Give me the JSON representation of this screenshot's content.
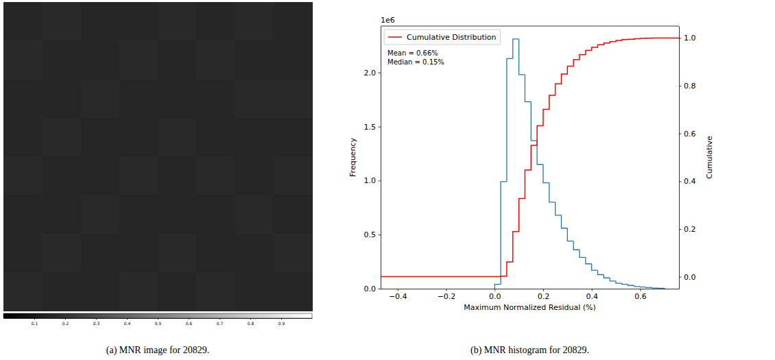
{
  "chart_data": [
    {
      "type": "heatmap",
      "caption": "(a) MNR image for 20829.",
      "cells": [
        [
          0.15,
          0.16,
          0.15,
          0.15,
          0.16,
          0.15,
          0.16,
          0.15
        ],
        [
          0.16,
          0.15,
          0.15,
          0.16,
          0.15,
          0.16,
          0.15,
          0.15
        ],
        [
          0.15,
          0.15,
          0.16,
          0.15,
          0.15,
          0.15,
          0.16,
          0.16
        ],
        [
          0.15,
          0.16,
          0.15,
          0.15,
          0.16,
          0.15,
          0.15,
          0.15
        ],
        [
          0.16,
          0.15,
          0.15,
          0.16,
          0.15,
          0.16,
          0.15,
          0.16
        ],
        [
          0.15,
          0.15,
          0.16,
          0.15,
          0.15,
          0.15,
          0.16,
          0.15
        ],
        [
          0.15,
          0.16,
          0.15,
          0.15,
          0.16,
          0.15,
          0.15,
          0.16
        ],
        [
          0.16,
          0.15,
          0.15,
          0.16,
          0.15,
          0.16,
          0.15,
          0.15
        ]
      ],
      "colorbar": {
        "range": [
          0,
          1
        ],
        "ticks": [
          0.1,
          0.2,
          0.3,
          0.4,
          0.5,
          0.6,
          0.7,
          0.8,
          0.9
        ]
      },
      "tick_labels": false
    },
    {
      "type": "histogram",
      "caption": "(b) MNR histogram for 20829.",
      "xlabel": "Maximum Normalized Residual (%)",
      "ylabel": "Frequency",
      "y2label": "Cumulative",
      "y_offset_label": "1e6",
      "annotations": [
        "Mean = 0.66%",
        "Median = 0.15%"
      ],
      "color": "#1f77b4",
      "bins": [
        0,
        0.025,
        0.05,
        0.075,
        0.1,
        0.125,
        0.15,
        0.175,
        0.2,
        0.225,
        0.25,
        0.275,
        0.3,
        0.325,
        0.35,
        0.375,
        0.4,
        0.425,
        0.45,
        0.475,
        0.5,
        0.525,
        0.55,
        0.575,
        0.6,
        0.625,
        0.65,
        0.675,
        0.7
      ],
      "values": [
        0.04,
        0.99,
        2.13,
        2.31,
        1.98,
        1.73,
        1.37,
        1.15,
        0.98,
        0.8,
        0.68,
        0.56,
        0.44,
        0.36,
        0.29,
        0.23,
        0.17,
        0.13,
        0.1,
        0.07,
        0.05,
        0.04,
        0.03,
        0.02,
        0.015,
        0.01,
        0.006,
        0.004
      ],
      "series": [
        {
          "name": "Cumulative Distribution",
          "type": "step",
          "color": "#ff0000",
          "axis": "y2",
          "x": [
            -0.47,
            0,
            0.025,
            0.05,
            0.075,
            0.1,
            0.125,
            0.15,
            0.175,
            0.2,
            0.225,
            0.25,
            0.275,
            0.3,
            0.325,
            0.35,
            0.375,
            0.4,
            0.425,
            0.45,
            0.475,
            0.5,
            0.525,
            0.55,
            0.575,
            0.6,
            0.625,
            0.65,
            0.675,
            0.7,
            0.76
          ],
          "values": [
            0,
            0,
            0.0024,
            0.062,
            0.189,
            0.328,
            0.447,
            0.55,
            0.632,
            0.701,
            0.76,
            0.808,
            0.849,
            0.882,
            0.909,
            0.93,
            0.948,
            0.961,
            0.972,
            0.979,
            0.985,
            0.99,
            0.993,
            0.995,
            0.997,
            0.998,
            0.999,
            0.9994,
            0.9998,
            1.0,
            1.0
          ]
        }
      ],
      "xlim": [
        -0.47,
        0.76
      ],
      "xticks": [
        {
          "value": -0.4,
          "label": "−0.4"
        },
        {
          "value": -0.2,
          "label": "−0.2"
        },
        {
          "value": 0,
          "label": "0.0"
        },
        0.2,
        0.4,
        0.6
      ],
      "ylim": [
        0,
        2.43
      ],
      "yticks": [
        {
          "value": 0,
          "label": "0.0"
        },
        0.5,
        {
          "value": 1,
          "label": "1.0"
        },
        1.5,
        {
          "value": 2,
          "label": "2.0"
        }
      ],
      "y2lim": [
        -0.05,
        1.05
      ],
      "y2ticks": [
        {
          "value": 0,
          "label": "0.0"
        },
        0.2,
        0.4,
        0.6,
        0.8,
        {
          "value": 1,
          "label": "1.0"
        }
      ],
      "legend": "upper left",
      "grid": false
    }
  ]
}
